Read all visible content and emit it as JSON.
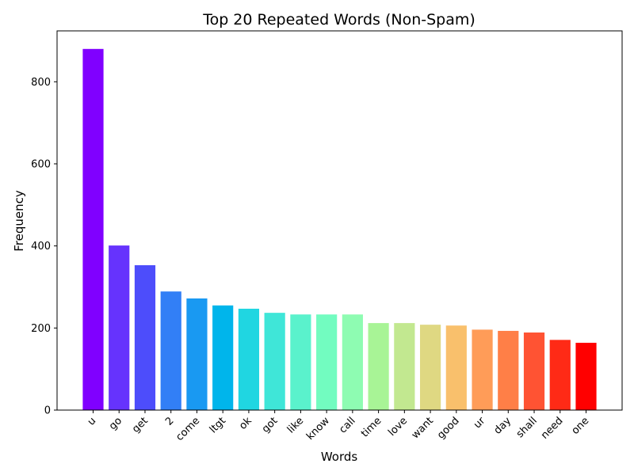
{
  "chart_data": {
    "type": "bar",
    "title": "Top 20 Repeated Words (Non-Spam)",
    "xlabel": "Words",
    "ylabel": "Frequency",
    "categories": [
      "u",
      "go",
      "get",
      "2",
      "come",
      "ltgt",
      "ok",
      "got",
      "like",
      "know",
      "call",
      "time",
      "love",
      "want",
      "good",
      "ur",
      "day",
      "shall",
      "need",
      "one"
    ],
    "values": [
      880,
      401,
      353,
      289,
      272,
      255,
      247,
      237,
      233,
      233,
      233,
      212,
      212,
      208,
      206,
      196,
      193,
      189,
      171,
      164
    ],
    "ylim": [
      0,
      924
    ],
    "yticks": [
      0,
      200,
      400,
      600,
      800
    ],
    "colors": [
      "#8000ff",
      "#6633fd",
      "#4d4dfb",
      "#327ff6",
      "#1999f2",
      "#00b5eb",
      "#20d6e1",
      "#3fe6d8",
      "#5af2cc",
      "#72fcc0",
      "#8efcb2",
      "#a8f496",
      "#c2e890",
      "#dfd882",
      "#f9c06c",
      "#ff9c58",
      "#ff7f47",
      "#ff5333",
      "#ff2a16",
      "#ff0000"
    ],
    "grid": false,
    "legend": "none"
  }
}
